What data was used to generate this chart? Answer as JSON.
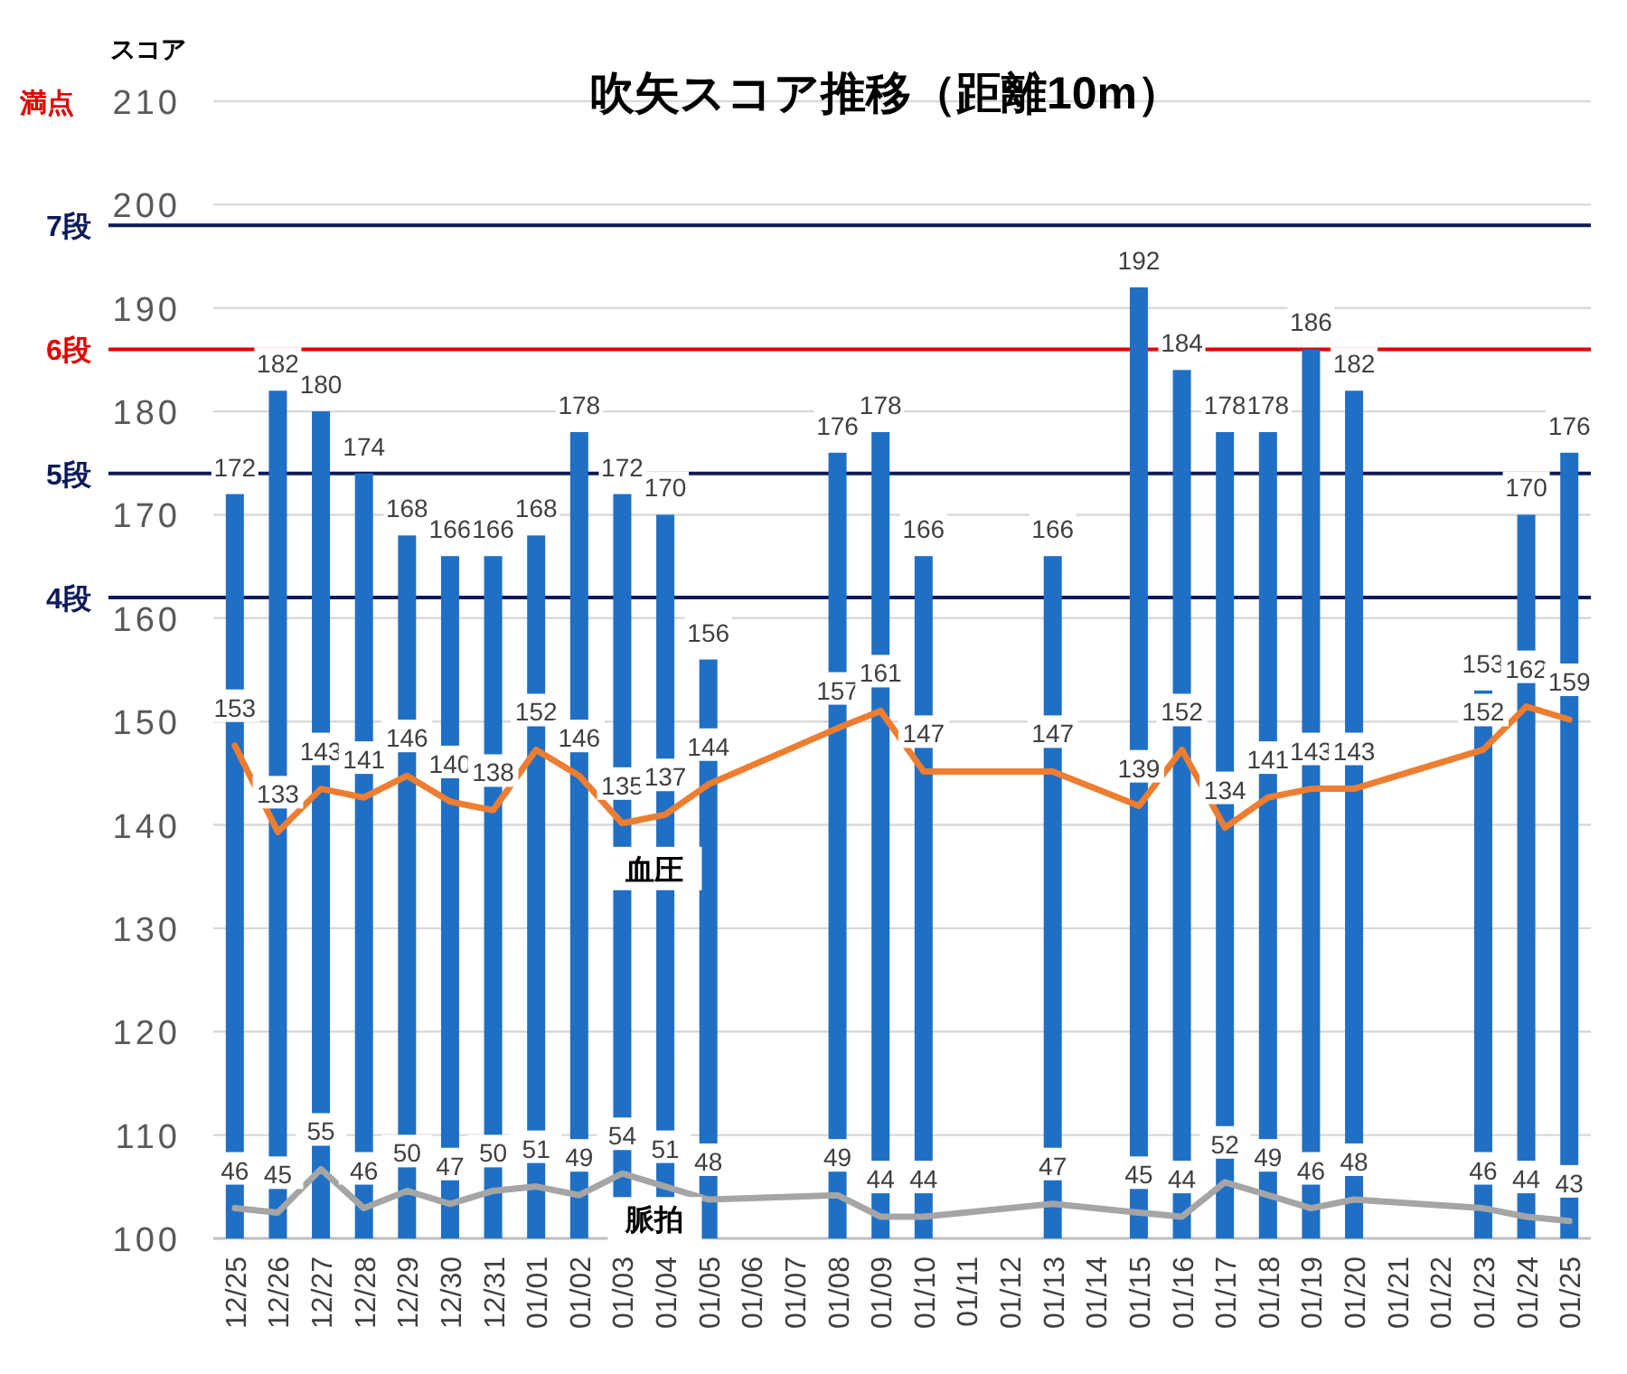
{
  "chart_data": {
    "type": "bar",
    "title": "吹矢スコア推移（距離10m）",
    "ylabel": "スコア",
    "categories": [
      "12/25",
      "12/26",
      "12/27",
      "12/28",
      "12/29",
      "12/30",
      "12/31",
      "01/01",
      "01/02",
      "01/03",
      "01/04",
      "01/05",
      "01/06",
      "01/07",
      "01/08",
      "01/09",
      "01/10",
      "01/11",
      "01/12",
      "01/13",
      "01/14",
      "01/15",
      "01/16",
      "01/17",
      "01/18",
      "01/19",
      "01/20",
      "01/21",
      "01/22",
      "01/23",
      "01/24",
      "01/25"
    ],
    "series": [
      {
        "color": "#1f6fc5",
        "values": [
          172,
          182,
          180,
          174,
          168,
          166,
          166,
          168,
          178,
          172,
          170,
          156,
          null,
          null,
          176,
          178,
          166,
          null,
          null,
          166,
          null,
          192,
          184,
          178,
          178,
          186,
          182,
          null,
          null,
          153,
          170,
          176
        ]
      },
      {
        "type": "line",
        "name": "血圧",
        "color": "#ed7d31",
        "axis": "y2",
        "values": [
          153,
          133,
          143,
          141,
          146,
          140,
          138,
          152,
          146,
          135,
          137,
          144,
          null,
          null,
          157,
          161,
          147,
          null,
          null,
          147,
          null,
          139,
          152,
          134,
          141,
          143,
          143,
          null,
          null,
          152,
          162,
          159
        ]
      },
      {
        "type": "line",
        "name": "脈拍",
        "color": "#a5a5a5",
        "axis": "y2",
        "values": [
          46,
          45,
          55,
          46,
          50,
          47,
          50,
          51,
          49,
          54,
          51,
          48,
          null,
          null,
          49,
          44,
          44,
          null,
          null,
          47,
          null,
          45,
          44,
          52,
          49,
          46,
          48,
          null,
          null,
          46,
          44,
          43
        ]
      }
    ],
    "ylim": [
      100,
      210
    ],
    "yticks": [
      100,
      110,
      120,
      130,
      140,
      150,
      160,
      170,
      180,
      190,
      200,
      210
    ],
    "y2lim": [
      39,
      302
    ],
    "grid": "y",
    "data_labels": true,
    "ref_lines": [
      {
        "axis": "y",
        "value": 198,
        "label": "7段",
        "color": "#0c1a5a"
      },
      {
        "axis": "y",
        "value": 186,
        "label": "6段",
        "color": "#e00000"
      },
      {
        "axis": "y",
        "value": 174,
        "label": "5段",
        "color": "#0c1a5a"
      },
      {
        "axis": "y",
        "value": 162,
        "label": "4段",
        "color": "#0c1a5a"
      }
    ],
    "annotations": [
      "満点"
    ]
  }
}
